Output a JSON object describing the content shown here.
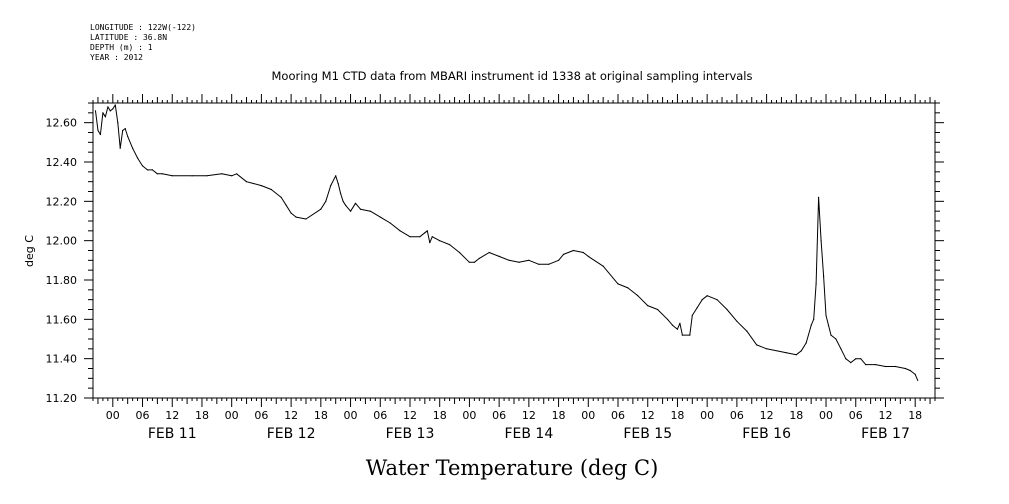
{
  "header": {
    "meta_lines": [
      "LONGITUDE : 122W(-122)",
      "LATITUDE : 36.8N",
      "DEPTH (m) : 1",
      "YEAR : 2012"
    ],
    "title": "Mooring M1 CTD data from MBARI instrument id 1338 at original sampling intervals"
  },
  "chart_data": {
    "type": "line",
    "title": "Mooring M1 CTD data from MBARI instrument id 1338 at original sampling intervals",
    "xlabel": "Water Temperature (deg C)",
    "ylabel": "deg C",
    "xlim": [
      "2012-02-10T20:00",
      "2012-02-17T22:00"
    ],
    "ylim": [
      11.2,
      12.7
    ],
    "y_ticks": [
      "11.20",
      "11.40",
      "11.60",
      "11.80",
      "12.00",
      "12.20",
      "12.40",
      "12.60"
    ],
    "x_hour_ticks": [
      "00",
      "06",
      "12",
      "18",
      "00",
      "06",
      "12",
      "18",
      "00",
      "06",
      "12",
      "18",
      "00",
      "06",
      "12",
      "18",
      "00",
      "06",
      "12",
      "18",
      "00",
      "06",
      "12",
      "18",
      "00",
      "06",
      "12",
      "18"
    ],
    "x_day_labels": [
      "FEB 11",
      "FEB 12",
      "FEB 13",
      "FEB 14",
      "FEB 15",
      "FEB 16",
      "FEB 17"
    ],
    "grid": false,
    "series": [
      {
        "x": [
          "2012-02-10T20:30",
          "2012-02-10T21:00",
          "2012-02-10T21:30",
          "2012-02-10T22:00",
          "2012-02-10T22:30",
          "2012-02-10T23:00",
          "2012-02-10T23:30",
          "2012-02-11T00:00",
          "2012-02-11T00:30",
          "2012-02-11T01:00",
          "2012-02-11T01:30",
          "2012-02-11T02:00",
          "2012-02-11T02:30",
          "2012-02-11T03:00",
          "2012-02-11T04:00",
          "2012-02-11T05:00",
          "2012-02-11T06:00",
          "2012-02-11T07:00",
          "2012-02-11T08:00",
          "2012-02-11T09:00",
          "2012-02-11T10:00",
          "2012-02-11T12:00",
          "2012-02-11T16:00",
          "2012-02-11T19:00",
          "2012-02-11T22:00",
          "2012-02-12T00:00",
          "2012-02-12T01:00",
          "2012-02-12T03:00",
          "2012-02-12T06:00",
          "2012-02-12T08:00",
          "2012-02-12T10:00",
          "2012-02-12T11:00",
          "2012-02-12T12:00",
          "2012-02-12T13:00",
          "2012-02-12T15:00",
          "2012-02-12T18:00",
          "2012-02-12T19:00",
          "2012-02-12T20:00",
          "2012-02-12T21:00",
          "2012-02-12T21:30",
          "2012-02-12T22:00",
          "2012-02-12T22:30",
          "2012-02-12T23:00",
          "2012-02-13T00:00",
          "2012-02-13T01:00",
          "2012-02-13T02:00",
          "2012-02-13T04:00",
          "2012-02-13T06:00",
          "2012-02-13T08:00",
          "2012-02-13T10:00",
          "2012-02-13T12:00",
          "2012-02-13T14:00",
          "2012-02-13T15:00",
          "2012-02-13T15:30",
          "2012-02-13T16:00",
          "2012-02-13T16:30",
          "2012-02-13T18:00",
          "2012-02-13T20:00",
          "2012-02-13T22:00",
          "2012-02-14T00:00",
          "2012-02-14T01:00",
          "2012-02-14T02:00",
          "2012-02-14T04:00",
          "2012-02-14T06:00",
          "2012-02-14T08:00",
          "2012-02-14T10:00",
          "2012-02-14T12:00",
          "2012-02-14T14:00",
          "2012-02-14T16:00",
          "2012-02-14T18:00",
          "2012-02-14T19:00",
          "2012-02-14T21:00",
          "2012-02-14T23:00",
          "2012-02-15T00:00",
          "2012-02-15T03:00",
          "2012-02-15T06:00",
          "2012-02-15T08:00",
          "2012-02-15T10:00",
          "2012-02-15T12:00",
          "2012-02-15T14:00",
          "2012-02-15T16:00",
          "2012-02-15T17:00",
          "2012-02-15T18:00",
          "2012-02-15T18:30",
          "2012-02-15T19:00",
          "2012-02-15T20:30",
          "2012-02-15T21:00",
          "2012-02-15T22:00",
          "2012-02-15T23:00",
          "2012-02-16T00:00",
          "2012-02-16T02:00",
          "2012-02-16T04:00",
          "2012-02-16T06:00",
          "2012-02-16T08:00",
          "2012-02-16T10:00",
          "2012-02-16T12:00",
          "2012-02-16T16:00",
          "2012-02-16T18:00",
          "2012-02-16T19:00",
          "2012-02-16T20:00",
          "2012-02-16T21:00",
          "2012-02-16T21:30",
          "2012-02-16T22:00",
          "2012-02-16T22:30",
          "2012-02-16T23:00",
          "2012-02-16T23:30",
          "2012-02-17T00:00",
          "2012-02-17T00:30",
          "2012-02-17T01:00",
          "2012-02-17T02:00",
          "2012-02-17T03:00",
          "2012-02-17T04:00",
          "2012-02-17T05:00",
          "2012-02-17T06:00",
          "2012-02-17T07:00",
          "2012-02-17T08:00",
          "2012-02-17T10:00",
          "2012-02-17T12:00",
          "2012-02-17T14:00",
          "2012-02-17T16:00",
          "2012-02-17T17:00",
          "2012-02-17T18:00",
          "2012-02-17T18:30"
        ],
        "y": [
          12.66,
          12.56,
          12.54,
          12.65,
          12.63,
          12.68,
          12.66,
          12.67,
          12.69,
          12.6,
          12.47,
          12.56,
          12.57,
          12.53,
          12.47,
          12.42,
          12.38,
          12.36,
          12.36,
          12.34,
          12.34,
          12.33,
          12.33,
          12.33,
          12.34,
          12.33,
          12.34,
          12.3,
          12.28,
          12.26,
          12.22,
          12.18,
          12.14,
          12.12,
          12.11,
          12.16,
          12.2,
          12.28,
          12.33,
          12.29,
          12.24,
          12.2,
          12.18,
          12.15,
          12.19,
          12.16,
          12.15,
          12.12,
          12.09,
          12.05,
          12.02,
          12.02,
          12.04,
          12.05,
          11.99,
          12.02,
          12.0,
          11.98,
          11.94,
          11.89,
          11.89,
          11.91,
          11.94,
          11.92,
          11.9,
          11.89,
          11.9,
          11.88,
          11.88,
          11.9,
          11.93,
          11.95,
          11.94,
          11.92,
          11.87,
          11.78,
          11.76,
          11.72,
          11.67,
          11.65,
          11.6,
          11.57,
          11.55,
          11.58,
          11.52,
          11.52,
          11.62,
          11.66,
          11.7,
          11.72,
          11.7,
          11.65,
          11.59,
          11.54,
          11.47,
          11.45,
          11.43,
          11.42,
          11.44,
          11.48,
          11.57,
          11.6,
          11.78,
          12.22,
          12.0,
          11.82,
          11.62,
          11.57,
          11.52,
          11.5,
          11.45,
          11.4,
          11.38,
          11.4,
          11.4,
          11.37,
          11.37,
          11.36,
          11.36,
          11.35,
          11.34,
          11.32,
          11.29
        ]
      }
    ]
  }
}
